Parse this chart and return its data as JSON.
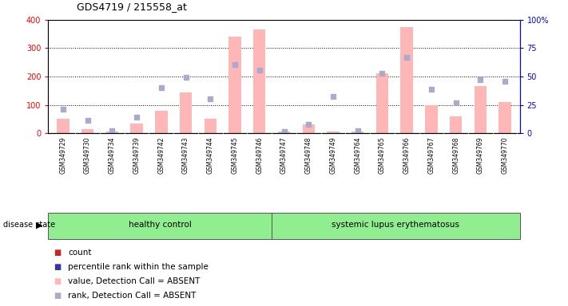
{
  "title": "GDS4719 / 215558_at",
  "samples": [
    "GSM349729",
    "GSM349730",
    "GSM349734",
    "GSM349739",
    "GSM349742",
    "GSM349743",
    "GSM349744",
    "GSM349745",
    "GSM349746",
    "GSM349747",
    "GSM349748",
    "GSM349749",
    "GSM349764",
    "GSM349765",
    "GSM349766",
    "GSM349767",
    "GSM349768",
    "GSM349769",
    "GSM349770"
  ],
  "bar_values": [
    50,
    15,
    5,
    35,
    80,
    145,
    50,
    340,
    365,
    5,
    30,
    5,
    5,
    210,
    375,
    100,
    60,
    165,
    110
  ],
  "rank_markers": [
    85,
    45,
    8,
    57,
    160,
    198,
    120,
    242,
    222,
    5,
    30,
    130,
    8,
    212,
    267,
    155,
    108,
    188,
    182
  ],
  "group_labels": [
    "healthy control",
    "systemic lupus erythematosus"
  ],
  "group_boundary": 9,
  "ylim_left": [
    0,
    400
  ],
  "ylim_right": [
    0,
    100
  ],
  "yticks_left": [
    0,
    100,
    200,
    300,
    400
  ],
  "yticks_right": [
    0,
    25,
    50,
    75,
    100
  ],
  "bar_color": "#FFB6B6",
  "marker_color": "#AAAACC",
  "group_color": "#90EE90",
  "label_bg": "#D8D8D8",
  "disease_state_label": "disease state",
  "legend_items": [
    {
      "color": "#CC2222",
      "label": "count"
    },
    {
      "color": "#3333AA",
      "label": "percentile rank within the sample"
    },
    {
      "color": "#FFB6B6",
      "label": "value, Detection Call = ABSENT"
    },
    {
      "color": "#AAAACC",
      "label": "rank, Detection Call = ABSENT"
    }
  ]
}
